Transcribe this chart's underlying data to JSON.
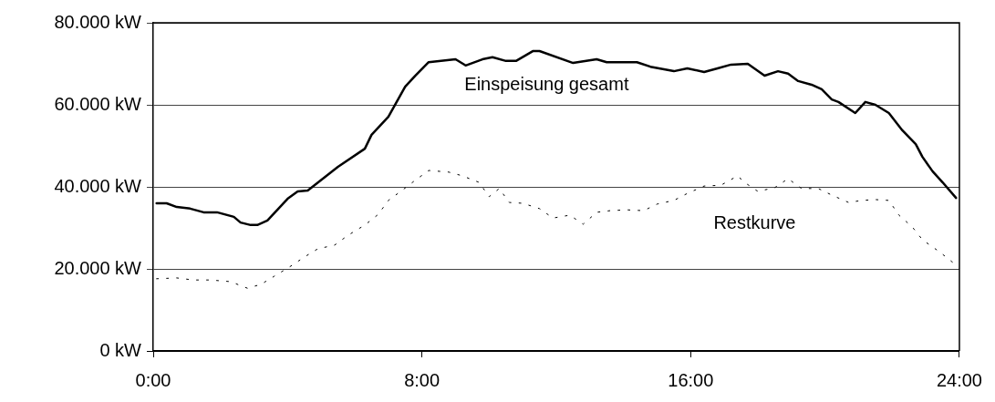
{
  "chart_data": {
    "type": "line",
    "xlim": [
      0,
      24
    ],
    "ylim": [
      0,
      80000
    ],
    "xticks": [
      {
        "value": 0,
        "label": "0:00"
      },
      {
        "value": 8,
        "label": "8:00"
      },
      {
        "value": 16,
        "label": "16:00"
      },
      {
        "value": 24,
        "label": "24:00"
      }
    ],
    "yticks": [
      {
        "value": 0,
        "label": "0 kW"
      },
      {
        "value": 20000,
        "label": "20.000 kW"
      },
      {
        "value": 40000,
        "label": "40.000 kW"
      },
      {
        "value": 60000,
        "label": "60.000 kW"
      },
      {
        "value": 80000,
        "label": "80.000 kW"
      }
    ],
    "grid": "y",
    "legend": false,
    "marker": "none",
    "series": [
      {
        "name": "Einspeisung gesamt",
        "color": "#000000",
        "line_style": "solid",
        "x": [
          0.1,
          0.4,
          0.7,
          1.1,
          1.5,
          1.9,
          2.4,
          2.6,
          2.9,
          3.1,
          3.4,
          4.0,
          4.3,
          4.6,
          5.5,
          6.3,
          6.5,
          7.0,
          7.5,
          7.8,
          8.2,
          9.0,
          9.3,
          9.8,
          10.1,
          10.5,
          10.8,
          11.3,
          11.5,
          12.5,
          13.2,
          13.5,
          14.4,
          14.8,
          15.5,
          15.9,
          16.4,
          16.8,
          17.2,
          17.7,
          18.2,
          18.6,
          18.9,
          19.2,
          19.6,
          19.9,
          20.2,
          20.4,
          20.9,
          21.2,
          21.5,
          21.9,
          22.3,
          22.7,
          22.9,
          23.2,
          23.5,
          23.9
        ],
        "values": [
          36000,
          36000,
          35100,
          34700,
          33800,
          33800,
          32700,
          31300,
          30700,
          30700,
          31800,
          37100,
          38900,
          39100,
          44900,
          49300,
          52700,
          57100,
          64400,
          67100,
          70400,
          71100,
          69600,
          71100,
          71600,
          70700,
          70700,
          73100,
          73100,
          70200,
          71100,
          70400,
          70400,
          69300,
          68200,
          68900,
          68000,
          68900,
          69800,
          70000,
          67100,
          68200,
          67600,
          65800,
          64900,
          63800,
          61300,
          60700,
          58000,
          60700,
          60000,
          58000,
          53800,
          50400,
          47300,
          43800,
          41100,
          37300
        ]
      },
      {
        "name": "Restkurve",
        "color": "#000000",
        "line_style": "dotted",
        "x": [
          0.1,
          0.7,
          1.2,
          1.7,
          2.3,
          2.8,
          3.2,
          3.6,
          4.1,
          4.5,
          4.9,
          5.4,
          5.8,
          6.3,
          6.7,
          7.0,
          7.4,
          7.8,
          8.2,
          8.8,
          9.2,
          9.7,
          10.0,
          10.3,
          10.6,
          11.0,
          11.5,
          11.9,
          12.4,
          12.8,
          13.2,
          13.6,
          14.1,
          14.6,
          15.0,
          15.5,
          15.9,
          16.4,
          16.9,
          17.4,
          17.6,
          18.0,
          18.5,
          18.9,
          19.3,
          19.8,
          20.2,
          20.7,
          21.1,
          21.5,
          21.9,
          22.2,
          22.6,
          22.9,
          23.4,
          23.8
        ],
        "values": [
          17600,
          17800,
          17300,
          17300,
          16900,
          15300,
          16200,
          18200,
          20700,
          22900,
          24900,
          25800,
          28200,
          30700,
          33300,
          36700,
          39100,
          41600,
          44000,
          43600,
          42700,
          41100,
          37600,
          39600,
          36200,
          36000,
          34700,
          32400,
          33100,
          30900,
          33800,
          34200,
          34400,
          34200,
          35800,
          36700,
          38400,
          40200,
          40400,
          42700,
          41100,
          38900,
          39800,
          42000,
          39600,
          39600,
          38000,
          36200,
          36700,
          36900,
          36700,
          33100,
          30200,
          27100,
          24200,
          21600
        ]
      }
    ]
  }
}
